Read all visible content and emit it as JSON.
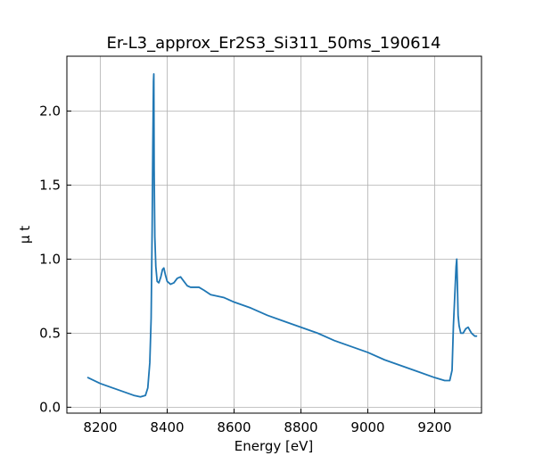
{
  "chart_data": {
    "type": "line",
    "title": "Er-L3_approx_Er2S3_Si311_50ms_190614",
    "xlabel": "Energy [eV]",
    "ylabel": "μ t",
    "xlim": [
      8100,
      9340
    ],
    "ylim": [
      -0.04,
      2.37
    ],
    "xticks": [
      8200,
      8400,
      8600,
      8800,
      9000,
      9200
    ],
    "xtick_labels": [
      "8200",
      "8400",
      "8600",
      "8800",
      "9000",
      "9200"
    ],
    "yticks": [
      0.0,
      0.5,
      1.0,
      1.5,
      2.0
    ],
    "ytick_labels": [
      "0.0",
      "0.5",
      "1.0",
      "1.5",
      "2.0"
    ],
    "grid": true,
    "line_color": "#1f77b4",
    "series": [
      {
        "x": [
          8163,
          8200,
          8250,
          8300,
          8320,
          8335,
          8342,
          8348,
          8352,
          8355,
          8357,
          8359,
          8360,
          8361,
          8363,
          8366,
          8370,
          8375,
          8381,
          8386,
          8390,
          8395,
          8400,
          8410,
          8420,
          8430,
          8440,
          8450,
          8460,
          8470,
          8480,
          8495,
          8510,
          8530,
          8550,
          8570,
          8600,
          8650,
          8700,
          8750,
          8800,
          8850,
          8900,
          8950,
          9000,
          9050,
          9100,
          9150,
          9200,
          9230,
          9245,
          9252,
          9256,
          9259,
          9262,
          9264,
          9266,
          9268,
          9270,
          9273,
          9278,
          9285,
          9293,
          9300,
          9305,
          9310,
          9315,
          9320,
          9325
        ],
        "y": [
          0.2,
          0.16,
          0.12,
          0.08,
          0.07,
          0.08,
          0.13,
          0.3,
          0.6,
          1.2,
          1.75,
          2.2,
          2.25,
          1.6,
          1.15,
          0.95,
          0.85,
          0.84,
          0.88,
          0.93,
          0.94,
          0.89,
          0.85,
          0.83,
          0.84,
          0.87,
          0.88,
          0.85,
          0.82,
          0.81,
          0.81,
          0.81,
          0.79,
          0.76,
          0.75,
          0.74,
          0.71,
          0.67,
          0.62,
          0.58,
          0.54,
          0.5,
          0.45,
          0.41,
          0.37,
          0.32,
          0.28,
          0.24,
          0.2,
          0.18,
          0.18,
          0.25,
          0.55,
          0.7,
          0.85,
          0.95,
          1.0,
          0.82,
          0.62,
          0.55,
          0.5,
          0.5,
          0.53,
          0.54,
          0.52,
          0.5,
          0.49,
          0.48,
          0.48
        ]
      }
    ]
  }
}
